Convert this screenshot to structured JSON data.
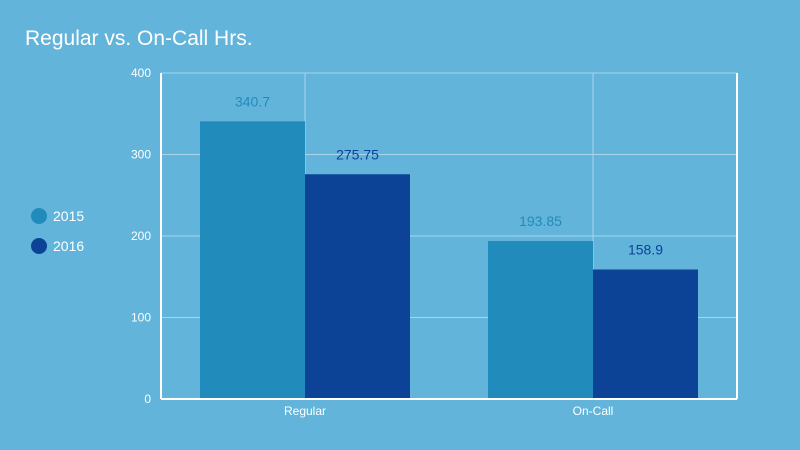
{
  "chart_data": {
    "type": "bar",
    "title": "Regular vs. On-Call Hrs.",
    "xlabel": "",
    "ylabel": "",
    "categories": [
      "Regular",
      "On-Call"
    ],
    "series": [
      {
        "name": "2015",
        "values": [
          340.7,
          193.85
        ],
        "color": "#218bbb",
        "labels": [
          "340.7",
          "193.85"
        ]
      },
      {
        "name": "2016",
        "values": [
          275.75,
          158.9
        ],
        "color": "#0c4397",
        "labels": [
          "275.75",
          "158.9"
        ]
      }
    ],
    "ylim": [
      0,
      400
    ],
    "yticks": [
      0,
      100,
      200,
      300,
      400
    ],
    "ytick_labels": [
      "0",
      "100",
      "200",
      "300",
      "400"
    ],
    "grid": true,
    "legend_position": "left",
    "colors": {
      "background": "#62b4db",
      "grid": "#a9d5ec",
      "axis": "#ffffff"
    }
  }
}
